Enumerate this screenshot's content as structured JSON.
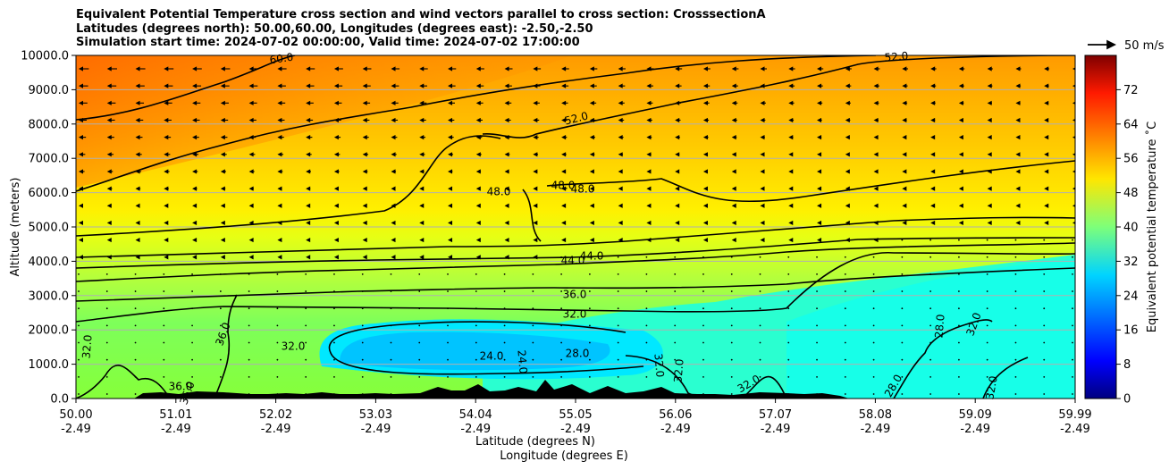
{
  "title_lines": [
    "Equivalent Potential Temperature cross section and wind vectors parallel to cross section: CrosssectionA",
    "Latitudes (degrees north): 50.00,60.00, Longitudes (degrees east): -2.50,-2.50",
    "Simulation start time: 2024-07-02 00:00:00, Valid time: 2024-07-02 17:00:00"
  ],
  "chart_data": {
    "type": "heatmap",
    "ylabel": "Altitude (meters)",
    "xlabel_lines": [
      "Latitude (degrees N)",
      "Longitude (degrees E)"
    ],
    "ylim": [
      0,
      10000
    ],
    "y_ticks": [
      "0.0",
      "1000.0",
      "2000.0",
      "3000.0",
      "4000.0",
      "5000.0",
      "6000.0",
      "7000.0",
      "8000.0",
      "9000.0",
      "10000.0"
    ],
    "x_ticks": [
      {
        "lat": "50.00",
        "lon": "-2.49"
      },
      {
        "lat": "51.01",
        "lon": "-2.49"
      },
      {
        "lat": "52.02",
        "lon": "-2.49"
      },
      {
        "lat": "53.03",
        "lon": "-2.49"
      },
      {
        "lat": "54.04",
        "lon": "-2.49"
      },
      {
        "lat": "55.05",
        "lon": "-2.49"
      },
      {
        "lat": "56.06",
        "lon": "-2.49"
      },
      {
        "lat": "57.07",
        "lon": "-2.49"
      },
      {
        "lat": "58.08",
        "lon": "-2.49"
      },
      {
        "lat": "59.09",
        "lon": "-2.49"
      },
      {
        "lat": "59.99",
        "lon": "-2.49"
      }
    ],
    "grid": true,
    "colorbar": {
      "label": "Equivalent potential temperature ˚C",
      "ticks": [
        "0",
        "8",
        "16",
        "24",
        "32",
        "40",
        "48",
        "56",
        "64",
        "72"
      ],
      "range": [
        0,
        80
      ]
    },
    "wind_key_label": "50 m/s",
    "contour_labels": [
      "60.0",
      "52.0",
      "52.0",
      "48.0",
      "48.0",
      "48.0",
      "44.0",
      "44.0",
      "36.0",
      "32.0",
      "28.0",
      "24.0",
      "24.0",
      "32.0",
      "36.0",
      "36.0",
      "32.0",
      "32.0",
      "28.0",
      "28.0",
      "32.0",
      "32.0",
      "32.0",
      "32.0",
      "36.0"
    ]
  },
  "colors": {
    "contour": "#000000",
    "terrain": "#000000",
    "colormap": "jet"
  }
}
